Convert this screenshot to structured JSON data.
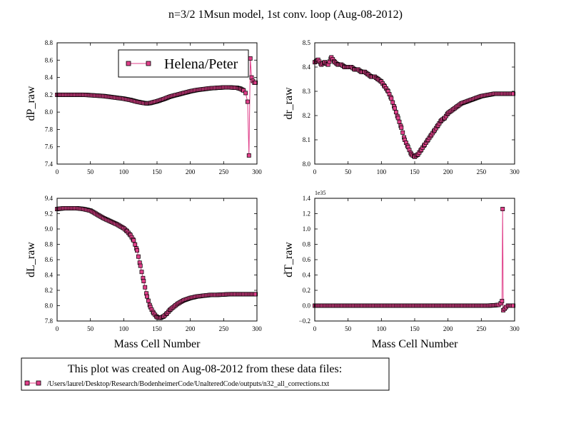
{
  "figure": {
    "suptitle": "n=3/2 1Msun model, 1st conv. loop (Aug-08-2012)",
    "series_color": "#e0408a",
    "marker_edge_color": "#000000"
  },
  "chart_data": [
    {
      "id": "dP",
      "type": "line",
      "marker": "square",
      "ylabel": "dP_raw",
      "xlabel": "",
      "xlim": [
        0,
        300
      ],
      "ylim": [
        7.4,
        8.8
      ],
      "xticks": [
        "0",
        "50",
        "100",
        "150",
        "200",
        "250",
        "300"
      ],
      "yticks": [
        "7.4",
        "7.6",
        "7.8",
        "8.0",
        "8.2",
        "8.4",
        "8.6",
        "8.8"
      ],
      "legend": {
        "label": "Helena/Peter",
        "position": "upper right"
      },
      "series": [
        {
          "name": "Helena/Peter",
          "points": [
            [
              0,
              8.2
            ],
            [
              10,
              8.2
            ],
            [
              20,
              8.2
            ],
            [
              30,
              8.2
            ],
            [
              40,
              8.2
            ],
            [
              50,
              8.195
            ],
            [
              60,
              8.19
            ],
            [
              70,
              8.185
            ],
            [
              80,
              8.175
            ],
            [
              90,
              8.165
            ],
            [
              100,
              8.155
            ],
            [
              110,
              8.14
            ],
            [
              120,
              8.12
            ],
            [
              130,
              8.105
            ],
            [
              135,
              8.1
            ],
            [
              140,
              8.105
            ],
            [
              150,
              8.125
            ],
            [
              160,
              8.15
            ],
            [
              170,
              8.18
            ],
            [
              180,
              8.2
            ],
            [
              190,
              8.22
            ],
            [
              200,
              8.24
            ],
            [
              210,
              8.255
            ],
            [
              220,
              8.265
            ],
            [
              230,
              8.275
            ],
            [
              240,
              8.28
            ],
            [
              250,
              8.285
            ],
            [
              260,
              8.285
            ],
            [
              270,
              8.28
            ],
            [
              275,
              8.27
            ],
            [
              280,
              8.25
            ],
            [
              283,
              8.22
            ],
            [
              286,
              8.12
            ],
            [
              288,
              7.5
            ],
            [
              290,
              8.62
            ],
            [
              292,
              8.4
            ],
            [
              294,
              8.36
            ],
            [
              296,
              8.34
            ],
            [
              298,
              8.34
            ]
          ]
        }
      ]
    },
    {
      "id": "dr",
      "type": "line",
      "marker": "square",
      "ylabel": "dr_raw",
      "xlabel": "",
      "xlim": [
        0,
        300
      ],
      "ylim": [
        8.0,
        8.5
      ],
      "xticks": [
        "0",
        "50",
        "100",
        "150",
        "200",
        "250",
        "300"
      ],
      "yticks": [
        "8.0",
        "8.1",
        "8.2",
        "8.3",
        "8.4",
        "8.5"
      ],
      "series": [
        {
          "name": "Helena/Peter",
          "points": [
            [
              0,
              8.42
            ],
            [
              5,
              8.43
            ],
            [
              10,
              8.41
            ],
            [
              15,
              8.42
            ],
            [
              20,
              8.41
            ],
            [
              25,
              8.44
            ],
            [
              30,
              8.42
            ],
            [
              35,
              8.41
            ],
            [
              40,
              8.41
            ],
            [
              45,
              8.4
            ],
            [
              50,
              8.4
            ],
            [
              55,
              8.4
            ],
            [
              60,
              8.39
            ],
            [
              65,
              8.39
            ],
            [
              70,
              8.38
            ],
            [
              75,
              8.38
            ],
            [
              80,
              8.37
            ],
            [
              85,
              8.36
            ],
            [
              90,
              8.36
            ],
            [
              95,
              8.35
            ],
            [
              100,
              8.34
            ],
            [
              105,
              8.32
            ],
            [
              110,
              8.3
            ],
            [
              115,
              8.27
            ],
            [
              120,
              8.23
            ],
            [
              125,
              8.19
            ],
            [
              130,
              8.15
            ],
            [
              135,
              8.1
            ],
            [
              140,
              8.07
            ],
            [
              145,
              8.04
            ],
            [
              150,
              8.03
            ],
            [
              155,
              8.04
            ],
            [
              160,
              8.06
            ],
            [
              165,
              8.08
            ],
            [
              170,
              8.1
            ],
            [
              175,
              8.12
            ],
            [
              180,
              8.14
            ],
            [
              185,
              8.16
            ],
            [
              190,
              8.18
            ],
            [
              195,
              8.19
            ],
            [
              200,
              8.21
            ],
            [
              210,
              8.23
            ],
            [
              220,
              8.25
            ],
            [
              230,
              8.26
            ],
            [
              240,
              8.27
            ],
            [
              250,
              8.28
            ],
            [
              260,
              8.285
            ],
            [
              270,
              8.29
            ],
            [
              280,
              8.29
            ],
            [
              290,
              8.29
            ],
            [
              298,
              8.29
            ]
          ]
        }
      ]
    },
    {
      "id": "dL",
      "type": "line",
      "marker": "square",
      "ylabel": "dL_raw",
      "xlabel": "Mass Cell Number",
      "xlim": [
        0,
        300
      ],
      "ylim": [
        7.8,
        9.4
      ],
      "xticks": [
        "0",
        "50",
        "100",
        "150",
        "200",
        "250",
        "300"
      ],
      "yticks": [
        "7.8",
        "8.0",
        "8.2",
        "8.4",
        "8.6",
        "8.8",
        "9.0",
        "9.2",
        "9.4"
      ],
      "series": [
        {
          "name": "Helena/Peter",
          "points": [
            [
              0,
              9.26
            ],
            [
              10,
              9.27
            ],
            [
              20,
              9.27
            ],
            [
              30,
              9.27
            ],
            [
              40,
              9.26
            ],
            [
              50,
              9.24
            ],
            [
              60,
              9.19
            ],
            [
              70,
              9.14
            ],
            [
              80,
              9.1
            ],
            [
              90,
              9.06
            ],
            [
              100,
              9.01
            ],
            [
              105,
              8.97
            ],
            [
              110,
              8.92
            ],
            [
              115,
              8.85
            ],
            [
              120,
              8.72
            ],
            [
              125,
              8.52
            ],
            [
              130,
              8.32
            ],
            [
              135,
              8.12
            ],
            [
              140,
              7.98
            ],
            [
              145,
              7.9
            ],
            [
              150,
              7.85
            ],
            [
              155,
              7.84
            ],
            [
              160,
              7.86
            ],
            [
              165,
              7.9
            ],
            [
              170,
              7.95
            ],
            [
              180,
              8.02
            ],
            [
              190,
              8.07
            ],
            [
              200,
              8.1
            ],
            [
              210,
              8.12
            ],
            [
              220,
              8.13
            ],
            [
              230,
              8.14
            ],
            [
              240,
              8.14
            ],
            [
              250,
              8.145
            ],
            [
              260,
              8.15
            ],
            [
              270,
              8.15
            ],
            [
              280,
              8.15
            ],
            [
              290,
              8.15
            ],
            [
              298,
              8.15
            ]
          ]
        }
      ]
    },
    {
      "id": "dT",
      "type": "line",
      "marker": "square",
      "ylabel": "dT_raw",
      "xlabel": "Mass Cell Number",
      "xlim": [
        0,
        300
      ],
      "ylim": [
        -0.2,
        1.4
      ],
      "scale_label": "1e35",
      "xticks": [
        "0",
        "50",
        "100",
        "150",
        "200",
        "250",
        "300"
      ],
      "yticks": [
        "−0.2",
        "0.0",
        "0.2",
        "0.4",
        "0.6",
        "0.8",
        "1.0",
        "1.2",
        "1.4"
      ],
      "series": [
        {
          "name": "Helena/Peter",
          "points": [
            [
              0,
              0
            ],
            [
              20,
              0
            ],
            [
              40,
              0
            ],
            [
              60,
              0
            ],
            [
              80,
              0
            ],
            [
              100,
              0
            ],
            [
              120,
              0
            ],
            [
              140,
              0
            ],
            [
              160,
              0
            ],
            [
              180,
              0
            ],
            [
              200,
              0
            ],
            [
              220,
              0
            ],
            [
              240,
              0
            ],
            [
              260,
              0
            ],
            [
              270,
              0.005
            ],
            [
              276,
              0.01
            ],
            [
              279,
              0.03
            ],
            [
              281,
              0.06
            ],
            [
              282,
              1.26
            ],
            [
              283,
              -0.06
            ],
            [
              285,
              -0.04
            ],
            [
              287,
              -0.02
            ],
            [
              290,
              0
            ],
            [
              294,
              0
            ],
            [
              298,
              0
            ]
          ]
        }
      ]
    }
  ],
  "note": {
    "title": "This plot was created on Aug-08-2012 from these data files:",
    "file": "/Users/laurel/Desktop/Research/BodenheimerCode/UnalteredCode/outputs/n32_all_corrections.txt"
  }
}
